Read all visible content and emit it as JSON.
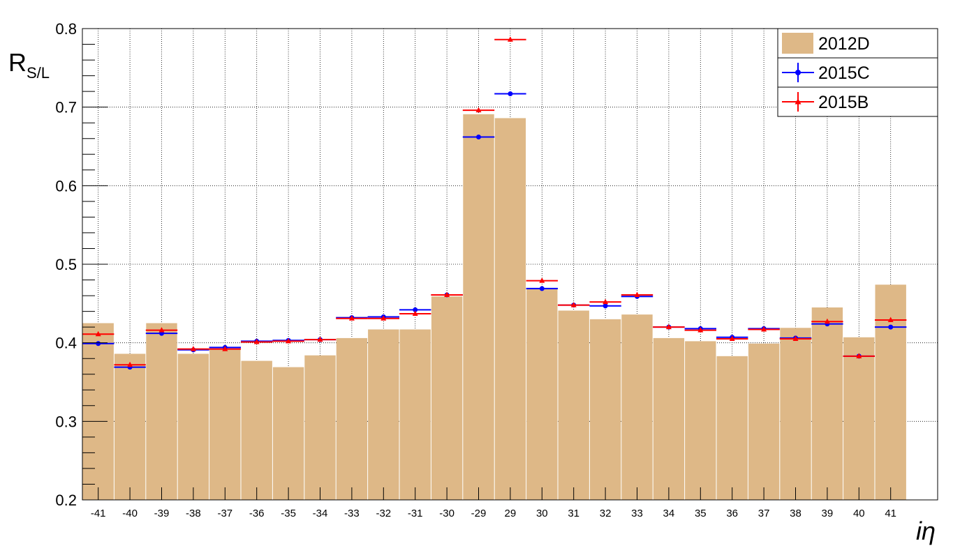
{
  "chart_data": {
    "type": "bar",
    "xlabel_main": "i",
    "xlabel_greek": "η",
    "ylabel_main": "R",
    "ylabel_sub": "S/L",
    "ylim": [
      0.2,
      0.8
    ],
    "yticks": [
      "0.2",
      "0.3",
      "0.4",
      "0.5",
      "0.6",
      "0.7",
      "0.8"
    ],
    "grid": true,
    "legend_position": "top-right",
    "categories": [
      "-41",
      "-40",
      "-39",
      "-38",
      "-37",
      "-36",
      "-35",
      "-34",
      "-33",
      "-32",
      "-31",
      "-30",
      "-29",
      "29",
      "30",
      "31",
      "32",
      "33",
      "34",
      "35",
      "36",
      "37",
      "38",
      "39",
      "40",
      "41"
    ],
    "series": [
      {
        "name": "2012D",
        "kind": "bar",
        "color": "#deb887",
        "values": [
          0.425,
          0.386,
          0.425,
          0.386,
          0.392,
          0.377,
          0.369,
          0.384,
          0.406,
          0.417,
          0.417,
          0.459,
          0.691,
          0.686,
          0.469,
          0.441,
          0.43,
          0.436,
          0.406,
          0.402,
          0.383,
          0.399,
          0.419,
          0.445,
          0.407,
          0.474
        ]
      },
      {
        "name": "2015C",
        "kind": "marker",
        "marker": "circle",
        "color": "#0000ff",
        "values": [
          0.399,
          0.369,
          0.412,
          0.391,
          0.394,
          0.402,
          0.403,
          0.404,
          0.432,
          0.433,
          0.442,
          0.461,
          0.662,
          0.717,
          0.469,
          0.448,
          0.447,
          0.459,
          0.42,
          0.418,
          0.407,
          0.418,
          0.406,
          0.424,
          0.383,
          0.42
        ]
      },
      {
        "name": "2015B",
        "kind": "marker",
        "marker": "triangle",
        "color": "#ff0000",
        "values": [
          0.411,
          0.372,
          0.416,
          0.392,
          0.392,
          0.401,
          0.402,
          0.404,
          0.431,
          0.431,
          0.437,
          0.461,
          0.696,
          0.786,
          0.479,
          0.448,
          0.452,
          0.461,
          0.42,
          0.416,
          0.405,
          0.417,
          0.405,
          0.427,
          0.383,
          0.429
        ]
      }
    ]
  }
}
